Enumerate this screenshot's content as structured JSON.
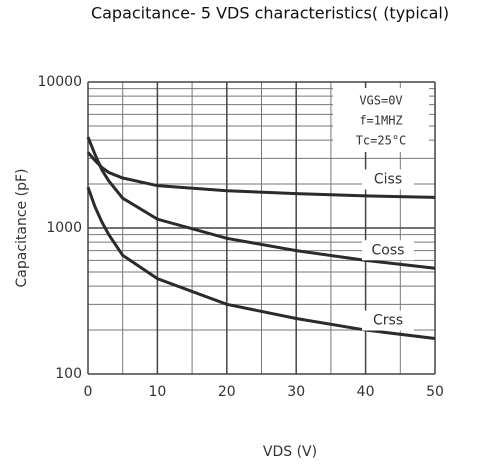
{
  "chart_data": {
    "type": "line",
    "title": "Capacitance- 5 VDS characteristics( (typical)",
    "xlabel": "VDS (V)",
    "ylabel": "Capacitance (pF)",
    "annotations": [
      "VGS=0V",
      "f=1MHZ",
      "Tc=25°C"
    ],
    "x": [
      0,
      1,
      2,
      3,
      5,
      10,
      20,
      30,
      40,
      50
    ],
    "series": [
      {
        "name": "Ciss",
        "color": "#2b2b2b",
        "values": [
          3300,
          2900,
          2600,
          2400,
          2200,
          1950,
          1800,
          1720,
          1660,
          1620
        ]
      },
      {
        "name": "Coss",
        "color": "#2b2b2b",
        "values": [
          4200,
          3200,
          2500,
          2100,
          1600,
          1150,
          850,
          700,
          600,
          530
        ]
      },
      {
        "name": "Crss",
        "color": "#2b2b2b",
        "values": [
          1900,
          1400,
          1100,
          900,
          650,
          450,
          300,
          240,
          200,
          175
        ]
      }
    ],
    "xlim": [
      0,
      50
    ],
    "xticks": [
      0,
      10,
      20,
      30,
      40,
      50
    ],
    "xminor": [
      5,
      15,
      25,
      35,
      45
    ],
    "ylim": [
      100,
      10000
    ],
    "yticks": [
      100,
      1000,
      10000
    ],
    "yminor": [
      200,
      300,
      400,
      500,
      600,
      700,
      800,
      900,
      2000,
      3000,
      4000,
      5000,
      6000,
      7000,
      8000,
      9000
    ],
    "log_y": true,
    "grid": true
  }
}
